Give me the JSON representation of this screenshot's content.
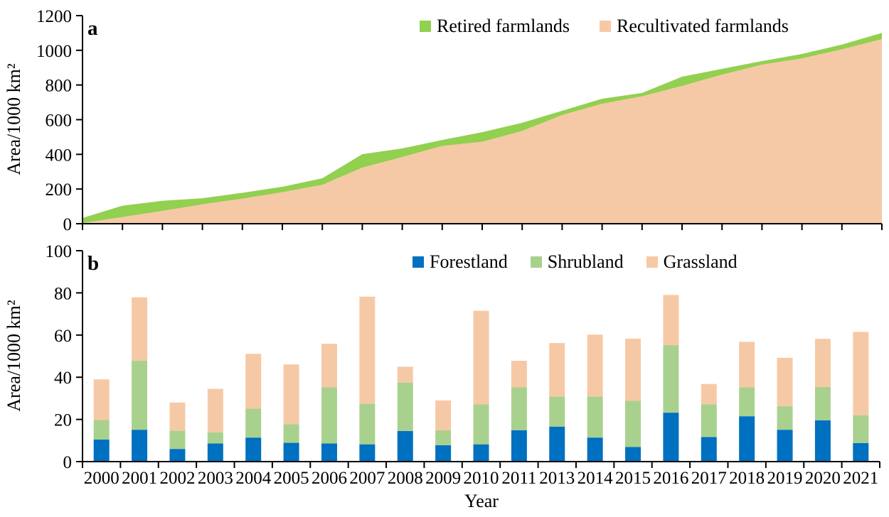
{
  "figure": {
    "panel_letters": [
      "a",
      "b"
    ]
  },
  "chart_data": [
    {
      "type": "area",
      "stacked": true,
      "panel": "a",
      "title": "",
      "x": [
        "2000",
        "2001",
        "2002",
        "2003",
        "2004",
        "2005",
        "2006",
        "2007",
        "2008",
        "2009",
        "2010",
        "2011",
        "2013",
        "2014",
        "2015",
        "2016",
        "2017",
        "2018",
        "2019",
        "2020",
        "2021"
      ],
      "series": [
        {
          "name": "Retired farmlands",
          "color": "#92D050",
          "values": [
            29,
            65,
            58,
            35,
            33,
            31,
            37,
            77,
            49,
            34,
            55,
            47,
            24,
            29,
            19,
            53,
            33,
            20,
            25,
            27,
            35
          ]
        },
        {
          "name": "Recultivated farmlands",
          "color": "#F6C9A6",
          "values": [
            4,
            39,
            74,
            112,
            145,
            182,
            225,
            324,
            385,
            449,
            473,
            535,
            627,
            692,
            735,
            795,
            860,
            918,
            954,
            1006,
            1065
          ]
        }
      ],
      "stack_order": [
        1,
        0
      ],
      "ylim": [
        0,
        1200
      ],
      "yticks": [
        0,
        200,
        400,
        600,
        800,
        1000,
        1200
      ],
      "ylabel": "Area/1000 km²",
      "legend_position": "top-center",
      "grid": false
    },
    {
      "type": "bar",
      "stacked": true,
      "panel": "b",
      "title": "",
      "categories": [
        "2000",
        "2001",
        "2002",
        "2003",
        "2004",
        "2005",
        "2006",
        "2007",
        "2008",
        "2009",
        "2010",
        "2011",
        "2013",
        "2014",
        "2015",
        "2016",
        "2017",
        "2018",
        "2019",
        "2020",
        "2021"
      ],
      "series": [
        {
          "name": "Forestland",
          "color": "#0070C0",
          "values": [
            10.5,
            15.1,
            6.0,
            8.6,
            11.4,
            8.9,
            8.6,
            8.2,
            14.5,
            7.8,
            8.2,
            14.9,
            16.6,
            11.4,
            6.9,
            23.2,
            11.7,
            21.5,
            15.1,
            19.6,
            8.8
          ]
        },
        {
          "name": "Shrubland",
          "color": "#A9D18E",
          "values": [
            9.2,
            32.7,
            8.7,
            5.3,
            13.7,
            8.8,
            26.7,
            19.3,
            23.0,
            7.0,
            19.0,
            20.3,
            14.3,
            19.5,
            21.9,
            32.0,
            15.5,
            13.7,
            11.2,
            15.8,
            13.2
          ]
        },
        {
          "name": "Grassland",
          "color": "#F6C9A6",
          "values": [
            19.3,
            30.1,
            13.3,
            20.6,
            26.0,
            28.4,
            20.6,
            50.7,
            7.5,
            14.2,
            44.3,
            12.6,
            25.3,
            29.3,
            29.5,
            23.8,
            9.6,
            21.6,
            22.9,
            22.8,
            39.5
          ]
        }
      ],
      "stack_order": [
        0,
        1,
        2
      ],
      "ylim": [
        0,
        100
      ],
      "yticks": [
        0,
        20,
        40,
        60,
        80,
        100
      ],
      "ylabel": "Area/1000 km²",
      "xlabel": "Year",
      "legend_position": "top-center",
      "grid": false
    }
  ]
}
